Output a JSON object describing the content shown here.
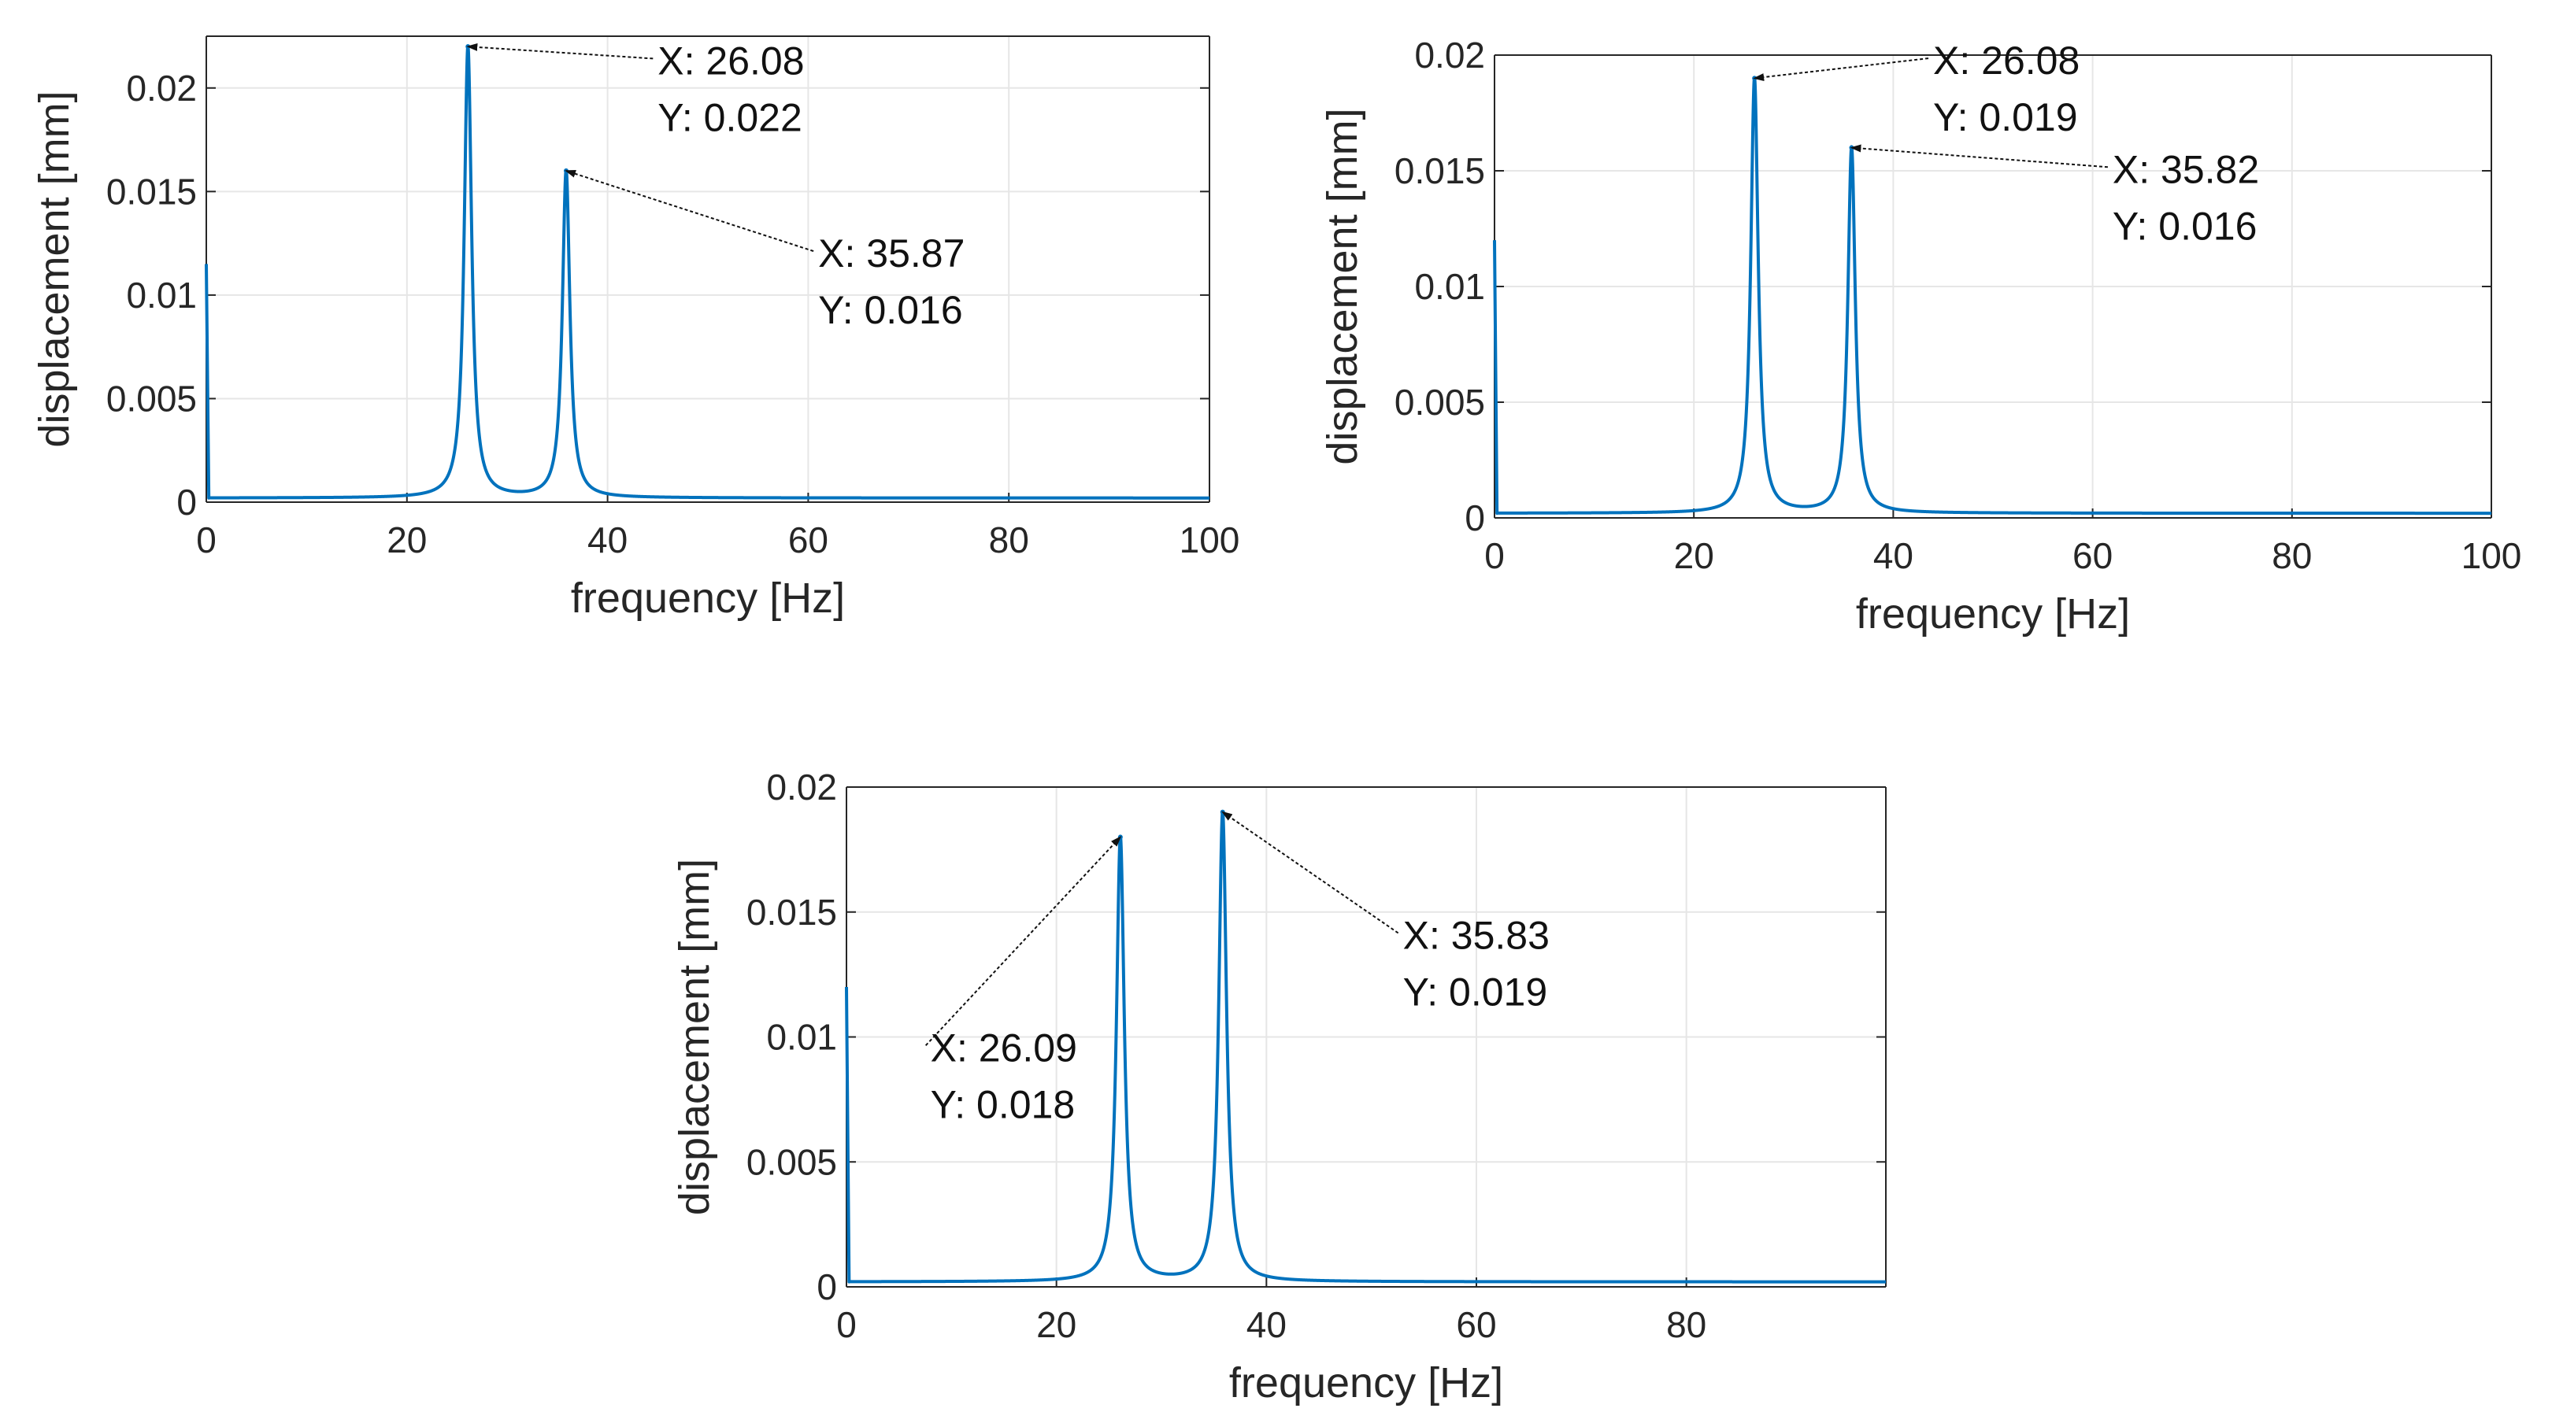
{
  "chart_data": [
    {
      "id": "top-left",
      "type": "line",
      "title": "",
      "xlabel": "frequency [Hz]",
      "ylabel": "displacement [mm]",
      "xlim": [
        0,
        100
      ],
      "ylim": [
        0,
        0.0225
      ],
      "grid": true,
      "color": "#0072BD",
      "xticks": [
        0,
        20,
        40,
        60,
        80,
        100
      ],
      "xtick_labels": [
        "0",
        "20",
        "40",
        "60",
        "80",
        "100"
      ],
      "yticks": [
        0,
        0.005,
        0.01,
        0.015,
        0.02
      ],
      "ytick_labels": [
        "0",
        "0.005",
        "0.01",
        "0.015",
        "0.02"
      ],
      "dc_value": 0.0115,
      "baseline": 0.0002,
      "peaks": [
        {
          "x": 26.08,
          "y": 0.022
        },
        {
          "x": 35.87,
          "y": 0.016
        }
      ],
      "annotations": [
        {
          "peak_x": 26.08,
          "peak_y": 0.022,
          "label_x": "X: 26.08",
          "label_y": "Y: 0.022",
          "text_at": [
            45,
            0.0199
          ]
        },
        {
          "peak_x": 35.87,
          "peak_y": 0.016,
          "label_x": "X: 35.87",
          "label_y": "Y: 0.016",
          "text_at": [
            61,
            0.0106
          ]
        }
      ]
    },
    {
      "id": "top-right",
      "type": "line",
      "title": "",
      "xlabel": "frequency [Hz]",
      "ylabel": "displacement [mm]",
      "xlim": [
        0,
        100
      ],
      "ylim": [
        0,
        0.02
      ],
      "grid": true,
      "color": "#0072BD",
      "xticks": [
        0,
        20,
        40,
        60,
        80,
        100
      ],
      "xtick_labels": [
        "0",
        "20",
        "40",
        "60",
        "80",
        "100"
      ],
      "yticks": [
        0,
        0.005,
        0.01,
        0.015,
        0.02
      ],
      "ytick_labels": [
        "0",
        "0.005",
        "0.01",
        "0.015",
        "0.02"
      ],
      "dc_value": 0.012,
      "baseline": 0.0002,
      "peaks": [
        {
          "x": 26.08,
          "y": 0.019
        },
        {
          "x": 35.82,
          "y": 0.016
        }
      ],
      "annotations": [
        {
          "peak_x": 26.08,
          "peak_y": 0.019,
          "label_x": "X: 26.08",
          "label_y": "Y: 0.019",
          "text_at": [
            44,
            0.0185
          ]
        },
        {
          "peak_x": 35.82,
          "peak_y": 0.016,
          "label_x": "X: 35.82",
          "label_y": "Y: 0.016",
          "text_at": [
            62,
            0.0138
          ]
        }
      ]
    },
    {
      "id": "bottom",
      "type": "line",
      "title": "",
      "xlabel": "frequency [Hz]",
      "ylabel": "displacement [mm]",
      "xlim": [
        0,
        99
      ],
      "ylim": [
        0,
        0.02
      ],
      "grid": true,
      "color": "#0072BD",
      "xticks": [
        0,
        20,
        40,
        60,
        80
      ],
      "xtick_labels": [
        "0",
        "20",
        "40",
        "60",
        "80"
      ],
      "yticks": [
        0,
        0.005,
        0.01,
        0.015,
        0.02
      ],
      "ytick_labels": [
        "0",
        "0.005",
        "0.01",
        "0.015",
        "0.02"
      ],
      "dc_value": 0.012,
      "baseline": 0.0002,
      "peaks": [
        {
          "x": 26.09,
          "y": 0.018
        },
        {
          "x": 35.83,
          "y": 0.019
        }
      ],
      "annotations": [
        {
          "peak_x": 26.09,
          "peak_y": 0.018,
          "label_x": "X: 26.09",
          "label_y": "Y: 0.018",
          "text_at": [
            8,
            0.0084
          ]
        },
        {
          "peak_x": 35.83,
          "peak_y": 0.019,
          "label_x": "X: 35.83",
          "label_y": "Y: 0.019",
          "text_at": [
            53,
            0.0129
          ]
        }
      ]
    }
  ]
}
